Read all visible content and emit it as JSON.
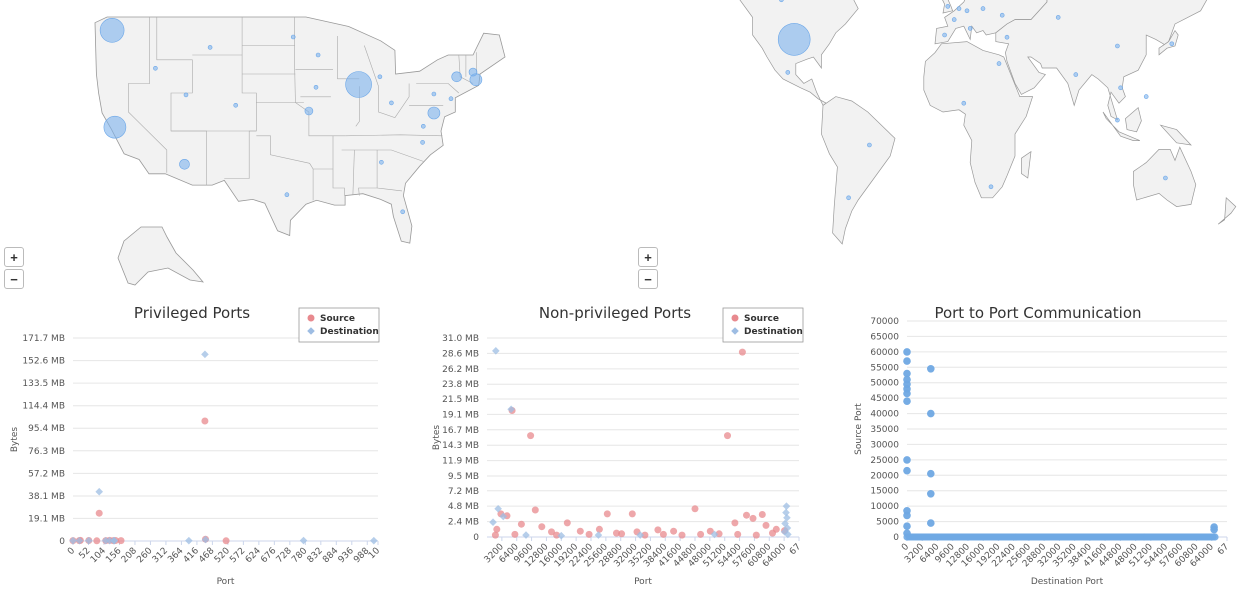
{
  "maps": {
    "us": {
      "zoom_in": "+",
      "zoom_out": "−",
      "bubbles": [
        {
          "name": "seattle",
          "lon": -122.3,
          "lat": 47.6,
          "size": 12
        },
        {
          "name": "bay-area",
          "lon": -121.9,
          "lat": 37.4,
          "size": 11
        },
        {
          "name": "phoenix",
          "lon": -112.1,
          "lat": 33.5,
          "size": 5
        },
        {
          "name": "chicago",
          "lon": -87.6,
          "lat": 41.9,
          "size": 13
        },
        {
          "name": "boston",
          "lon": -71.1,
          "lat": 42.4,
          "size": 6
        },
        {
          "name": "new-hampshire",
          "lon": -71.5,
          "lat": 43.2,
          "size": 4
        },
        {
          "name": "albany",
          "lon": -73.8,
          "lat": 42.7,
          "size": 5
        },
        {
          "name": "washington-dc",
          "lon": -77.0,
          "lat": 38.9,
          "size": 6
        },
        {
          "name": "kansas-city",
          "lon": -94.6,
          "lat": 39.1,
          "size": 4
        },
        {
          "name": "idaho",
          "lon": -116.2,
          "lat": 43.6,
          "size": 2
        },
        {
          "name": "montana",
          "lon": -108.5,
          "lat": 45.8,
          "size": 2
        },
        {
          "name": "utah",
          "lon": -111.9,
          "lat": 40.8,
          "size": 2
        },
        {
          "name": "colorado",
          "lon": -104.9,
          "lat": 39.7,
          "size": 2
        },
        {
          "name": "north-dakota",
          "lon": -96.8,
          "lat": 46.9,
          "size": 2
        },
        {
          "name": "minnesota",
          "lon": -93.3,
          "lat": 45.0,
          "size": 2
        },
        {
          "name": "iowa",
          "lon": -93.6,
          "lat": 41.6,
          "size": 2
        },
        {
          "name": "michigan",
          "lon": -84.6,
          "lat": 42.7,
          "size": 2
        },
        {
          "name": "ohio",
          "lon": -82.99,
          "lat": 39.96,
          "size": 2
        },
        {
          "name": "pennsylvania",
          "lon": -77.0,
          "lat": 40.9,
          "size": 2
        },
        {
          "name": "new-jersey",
          "lon": -74.6,
          "lat": 40.4,
          "size": 2
        },
        {
          "name": "virginia",
          "lon": -78.5,
          "lat": 37.5,
          "size": 2
        },
        {
          "name": "north-carolina",
          "lon": -78.6,
          "lat": 35.8,
          "size": 2
        },
        {
          "name": "georgia",
          "lon": -84.4,
          "lat": 33.7,
          "size": 2
        },
        {
          "name": "texas",
          "lon": -97.7,
          "lat": 30.3,
          "size": 2
        },
        {
          "name": "florida",
          "lon": -81.4,
          "lat": 28.5,
          "size": 2
        }
      ]
    },
    "world": {
      "zoom_in": "+",
      "zoom_out": "−",
      "bubbles": [
        {
          "name": "united-states",
          "lon": -98,
          "lat": 38,
          "size": 16
        },
        {
          "name": "canada",
          "lon": -106,
          "lat": 56,
          "size": 2
        },
        {
          "name": "mexico",
          "lon": -102,
          "lat": 23,
          "size": 2
        },
        {
          "name": "brazil",
          "lon": -51,
          "lat": -10,
          "size": 2
        },
        {
          "name": "argentina",
          "lon": -64,
          "lat": -34,
          "size": 2
        },
        {
          "name": "uk",
          "lon": -2,
          "lat": 53,
          "size": 2
        },
        {
          "name": "france",
          "lon": 2,
          "lat": 47,
          "size": 2
        },
        {
          "name": "germany",
          "lon": 10,
          "lat": 51,
          "size": 2
        },
        {
          "name": "netherlands",
          "lon": 5,
          "lat": 52,
          "size": 2
        },
        {
          "name": "sweden",
          "lon": 15,
          "lat": 60,
          "size": 2
        },
        {
          "name": "poland",
          "lon": 20,
          "lat": 52,
          "size": 2
        },
        {
          "name": "italy",
          "lon": 12,
          "lat": 43,
          "size": 2
        },
        {
          "name": "spain",
          "lon": -4,
          "lat": 40,
          "size": 2
        },
        {
          "name": "ukraine",
          "lon": 32,
          "lat": 49,
          "size": 2
        },
        {
          "name": "russia",
          "lon": 90,
          "lat": 61,
          "size": 2
        },
        {
          "name": "kazakhstan",
          "lon": 67,
          "lat": 48,
          "size": 2
        },
        {
          "name": "turkey",
          "lon": 35,
          "lat": 39,
          "size": 2
        },
        {
          "name": "egypt",
          "lon": 30,
          "lat": 27,
          "size": 2
        },
        {
          "name": "india",
          "lon": 78,
          "lat": 22,
          "size": 2
        },
        {
          "name": "china",
          "lon": 104,
          "lat": 35,
          "size": 2
        },
        {
          "name": "japan",
          "lon": 138,
          "lat": 36,
          "size": 2
        },
        {
          "name": "vietnam",
          "lon": 106,
          "lat": 16,
          "size": 2
        },
        {
          "name": "philippines",
          "lon": 122,
          "lat": 12,
          "size": 2
        },
        {
          "name": "singapore",
          "lon": 104,
          "lat": 1.3,
          "size": 2
        },
        {
          "name": "nigeria",
          "lon": 8,
          "lat": 9,
          "size": 2
        },
        {
          "name": "south-africa",
          "lon": 25,
          "lat": -29,
          "size": 2
        },
        {
          "name": "australia",
          "lon": 134,
          "lat": -25,
          "size": 2
        }
      ]
    }
  },
  "chart_data": [
    {
      "type": "scatter",
      "title": "Privileged Ports",
      "xlabel": "Port",
      "ylabel": "Bytes",
      "xlim": [
        0,
        1024
      ],
      "xticks": [
        0,
        52,
        104,
        156,
        208,
        260,
        312,
        364,
        416,
        468,
        520,
        572,
        624,
        676,
        728,
        780,
        832,
        884,
        936,
        988,
        "10"
      ],
      "ylim_mb": [
        0,
        171.7
      ],
      "yticks_mb": [
        0,
        19.1,
        38.1,
        57.2,
        76.3,
        95.4,
        114.4,
        133.5,
        152.6,
        171.7
      ],
      "ytick_labels": [
        "0",
        "19.1 MB",
        "38.1 MB",
        "57.2 MB",
        "76.3 MB",
        "95.4 MB",
        "114.4 MB",
        "133.5 MB",
        "152.6 MB",
        "171.7 MB"
      ],
      "legend": {
        "position": "top-right",
        "source": "Source",
        "destination": "Destination"
      },
      "series": [
        {
          "name": "Source",
          "color": "#e8898e",
          "marker": "circle",
          "points": [
            [
              0,
              0.3
            ],
            [
              21,
              0.3
            ],
            [
              25,
              0.5
            ],
            [
              53,
              0.4
            ],
            [
              80,
              0.2
            ],
            [
              88,
              23.5
            ],
            [
              110,
              0.3
            ],
            [
              123,
              0.5
            ],
            [
              135,
              0.3
            ],
            [
              143,
              0.4
            ],
            [
              161,
              0.3
            ],
            [
              443,
              101.5
            ],
            [
              445,
              1.5
            ],
            [
              514,
              0.2
            ]
          ]
        },
        {
          "name": "Destination",
          "color": "#9ebde3",
          "marker": "diamond",
          "points": [
            [
              0,
              0.3
            ],
            [
              22,
              0.3
            ],
            [
              53,
              0.3
            ],
            [
              88,
              41.7
            ],
            [
              110,
              0.3
            ],
            [
              123,
              0.3
            ],
            [
              137,
              0.3
            ],
            [
              139,
              0.3
            ],
            [
              389,
              0.3
            ],
            [
              443,
              157.9
            ],
            [
              445,
              1.2
            ],
            [
              774,
              0.4
            ],
            [
              1010,
              0.3
            ]
          ]
        }
      ]
    },
    {
      "type": "scatter",
      "title": "Non-privileged Ports",
      "xlabel": "Port",
      "ylabel": "Bytes",
      "xlim": [
        0,
        67200
      ],
      "xticks": [
        3200,
        6400,
        9600,
        12800,
        16000,
        19200,
        22400,
        25600,
        28800,
        32000,
        35200,
        38400,
        41600,
        44800,
        48000,
        51200,
        54400,
        57600,
        60800,
        64000,
        "67"
      ],
      "ylim_mb": [
        0,
        31.0
      ],
      "yticks_mb": [
        0,
        2.4,
        4.8,
        7.2,
        9.5,
        11.9,
        14.3,
        16.7,
        19.1,
        21.5,
        23.8,
        26.2,
        28.6,
        31.0
      ],
      "ytick_labels": [
        "0",
        "2.4 MB",
        "4.8 MB",
        "7.2 MB",
        "9.5 MB",
        "11.9 MB",
        "14.3 MB",
        "16.7 MB",
        "19.1 MB",
        "21.5 MB",
        "23.8 MB",
        "26.2 MB",
        "28.6 MB",
        "31.0 MB"
      ],
      "legend": {
        "position": "top-right",
        "source": "Source",
        "destination": "Destination"
      },
      "series": [
        {
          "name": "Source",
          "color": "#e8898e",
          "marker": "circle",
          "points": [
            [
              2100,
              1.2
            ],
            [
              3000,
              3.6
            ],
            [
              4300,
              3.3
            ],
            [
              5400,
              19.7
            ],
            [
              7400,
              2.0
            ],
            [
              9400,
              15.8
            ],
            [
              10400,
              4.2
            ],
            [
              11800,
              1.6
            ],
            [
              13900,
              0.8
            ],
            [
              17300,
              2.2
            ],
            [
              20100,
              0.9
            ],
            [
              24200,
              1.2
            ],
            [
              25900,
              3.6
            ],
            [
              27900,
              0.6
            ],
            [
              31300,
              3.6
            ],
            [
              32300,
              0.8
            ],
            [
              36800,
              1.1
            ],
            [
              40200,
              0.9
            ],
            [
              44800,
              4.4
            ],
            [
              48100,
              0.9
            ],
            [
              51800,
              15.8
            ],
            [
              53400,
              2.2
            ],
            [
              55000,
              28.8
            ],
            [
              55900,
              3.4
            ],
            [
              57300,
              2.9
            ],
            [
              59300,
              3.5
            ],
            [
              60100,
              1.8
            ],
            [
              62300,
              1.2
            ],
            [
              64100,
              1.0
            ],
            [
              1800,
              0.3
            ],
            [
              6000,
              0.4
            ],
            [
              15000,
              0.3
            ],
            [
              22000,
              0.4
            ],
            [
              29000,
              0.5
            ],
            [
              34000,
              0.3
            ],
            [
              38000,
              0.4
            ],
            [
              42000,
              0.3
            ],
            [
              46000,
              0.4
            ],
            [
              50000,
              0.5
            ],
            [
              54000,
              0.4
            ],
            [
              58000,
              0.3
            ],
            [
              61500,
              0.6
            ]
          ]
        },
        {
          "name": "Destination",
          "color": "#9ebde3",
          "marker": "diamond",
          "points": [
            [
              1900,
              29.0
            ],
            [
              5200,
              19.9
            ],
            [
              2400,
              4.4
            ],
            [
              3500,
              3.2
            ],
            [
              1300,
              2.3
            ],
            [
              8400,
              0.3
            ],
            [
              16000,
              0.2
            ],
            [
              24000,
              0.3
            ],
            [
              33000,
              0.3
            ],
            [
              49000,
              0.4
            ],
            [
              64500,
              4.8
            ],
            [
              64400,
              3.8
            ],
            [
              64600,
              3.0
            ],
            [
              64200,
              2.1
            ],
            [
              64700,
              1.4
            ],
            [
              64100,
              0.8
            ],
            [
              64800,
              0.4
            ]
          ]
        }
      ]
    },
    {
      "type": "scatter",
      "title": "Port to Port Communication",
      "xlabel": "Destination Port",
      "ylabel": "Source Port",
      "xlim": [
        0,
        67200
      ],
      "xticks": [
        0,
        3200,
        6400,
        9600,
        12800,
        16000,
        19200,
        22400,
        25600,
        28800,
        32000,
        35200,
        38400,
        41600,
        44800,
        48000,
        51200,
        54400,
        57600,
        60800,
        64000,
        "67"
      ],
      "ylim": [
        0,
        70000
      ],
      "yticks": [
        0,
        5000,
        10000,
        15000,
        20000,
        25000,
        30000,
        35000,
        40000,
        45000,
        50000,
        55000,
        60000,
        65000,
        70000
      ],
      "series": [
        {
          "name": "",
          "color": "#6fa8e3",
          "marker": "circle",
          "points": [
            [
              0,
              60000
            ],
            [
              0,
              57000
            ],
            [
              0,
              53000
            ],
            [
              0,
              51000
            ],
            [
              0,
              49500
            ],
            [
              0,
              48000
            ],
            [
              0,
              46500
            ],
            [
              0,
              44000
            ],
            [
              0,
              25000
            ],
            [
              0,
              21500
            ],
            [
              0,
              8500
            ],
            [
              0,
              7000
            ],
            [
              0,
              3500
            ],
            [
              0,
              1200
            ],
            [
              5000,
              54500
            ],
            [
              5000,
              40000
            ],
            [
              5000,
              20500
            ],
            [
              5000,
              14000
            ],
            [
              5000,
              4500
            ],
            [
              64500,
              3200
            ],
            [
              64500,
              2400
            ]
          ],
          "baseline_dense_y": 0
        }
      ]
    }
  ]
}
